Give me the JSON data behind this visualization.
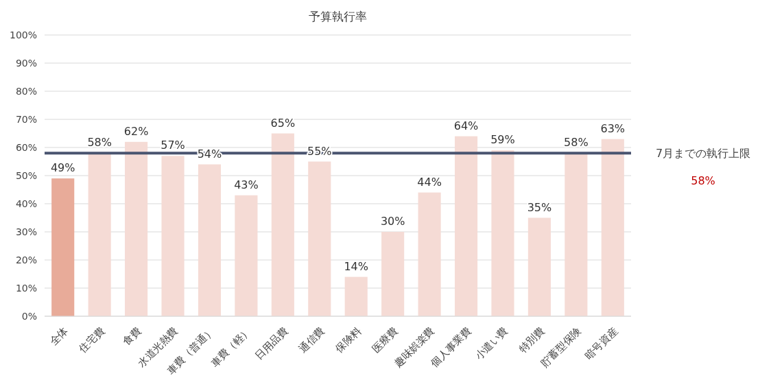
{
  "chart_data": {
    "type": "bar",
    "title": "予算執行率",
    "categories": [
      "全体",
      "住宅費",
      "食費",
      "水道光熱費",
      "車費（普通）",
      "車費（軽）",
      "日用品費",
      "通信費",
      "保険料",
      "医療費",
      "趣味娯楽費",
      "個人事業費",
      "小遣い費",
      "特別費",
      "貯蓄型保険",
      "暗号資産"
    ],
    "values": [
      49,
      58,
      62,
      57,
      54,
      43,
      65,
      55,
      14,
      30,
      44,
      64,
      59,
      35,
      58,
      63
    ],
    "value_labels": [
      "49%",
      "58%",
      "62%",
      "57%",
      "54%",
      "43%",
      "65%",
      "55%",
      "14%",
      "30%",
      "44%",
      "64%",
      "59%",
      "35%",
      "58%",
      "63%"
    ],
    "colors": [
      "#e8ab99",
      "#f5dbd5",
      "#f5dbd5",
      "#f5dbd5",
      "#f5dbd5",
      "#f5dbd5",
      "#f5dbd5",
      "#f5dbd5",
      "#f5dbd5",
      "#f5dbd5",
      "#f5dbd5",
      "#f5dbd5",
      "#f5dbd5",
      "#f5dbd5",
      "#f5dbd5",
      "#f5dbd5"
    ],
    "ylim": [
      0,
      100
    ],
    "yticks": [
      {
        "value": 0,
        "label": "0%"
      },
      {
        "value": 10,
        "label": "10%"
      },
      {
        "value": 20,
        "label": "20%"
      },
      {
        "value": 30,
        "label": "30%"
      },
      {
        "value": 40,
        "label": "40%"
      },
      {
        "value": 50,
        "label": "50%"
      },
      {
        "value": 60,
        "label": "60%"
      },
      {
        "value": 70,
        "label": "70%"
      },
      {
        "value": 80,
        "label": "80%"
      },
      {
        "value": 90,
        "label": "90%"
      },
      {
        "value": 100,
        "label": "100%"
      }
    ],
    "grid": "y",
    "ref_lines": [
      {
        "axis": "y",
        "value": 58,
        "label": "7月までの執行上限",
        "color": "#4a5570"
      }
    ],
    "annotations": [
      "58%"
    ]
  }
}
